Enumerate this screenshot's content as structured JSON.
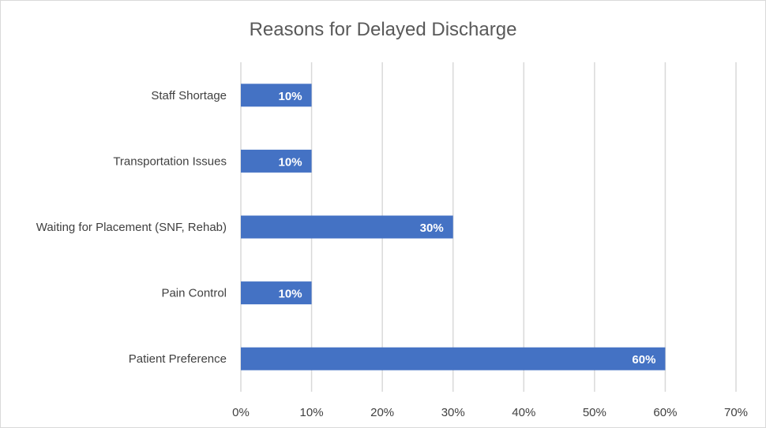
{
  "chart_data": {
    "type": "bar",
    "orientation": "horizontal",
    "title": "Reasons for Delayed Discharge",
    "categories": [
      "Staff Shortage",
      "Transportation Issues",
      "Waiting for Placement (SNF, Rehab)",
      "Pain Control",
      "Patient Preference"
    ],
    "values": [
      10,
      10,
      30,
      10,
      60
    ],
    "data_labels": [
      "10%",
      "10%",
      "30%",
      "10%",
      "60%"
    ],
    "x_ticks": [
      "0%",
      "10%",
      "20%",
      "30%",
      "40%",
      "50%",
      "60%",
      "70%"
    ],
    "xlim": [
      0,
      70
    ],
    "grid": true,
    "bar_color": "#4472C4"
  }
}
